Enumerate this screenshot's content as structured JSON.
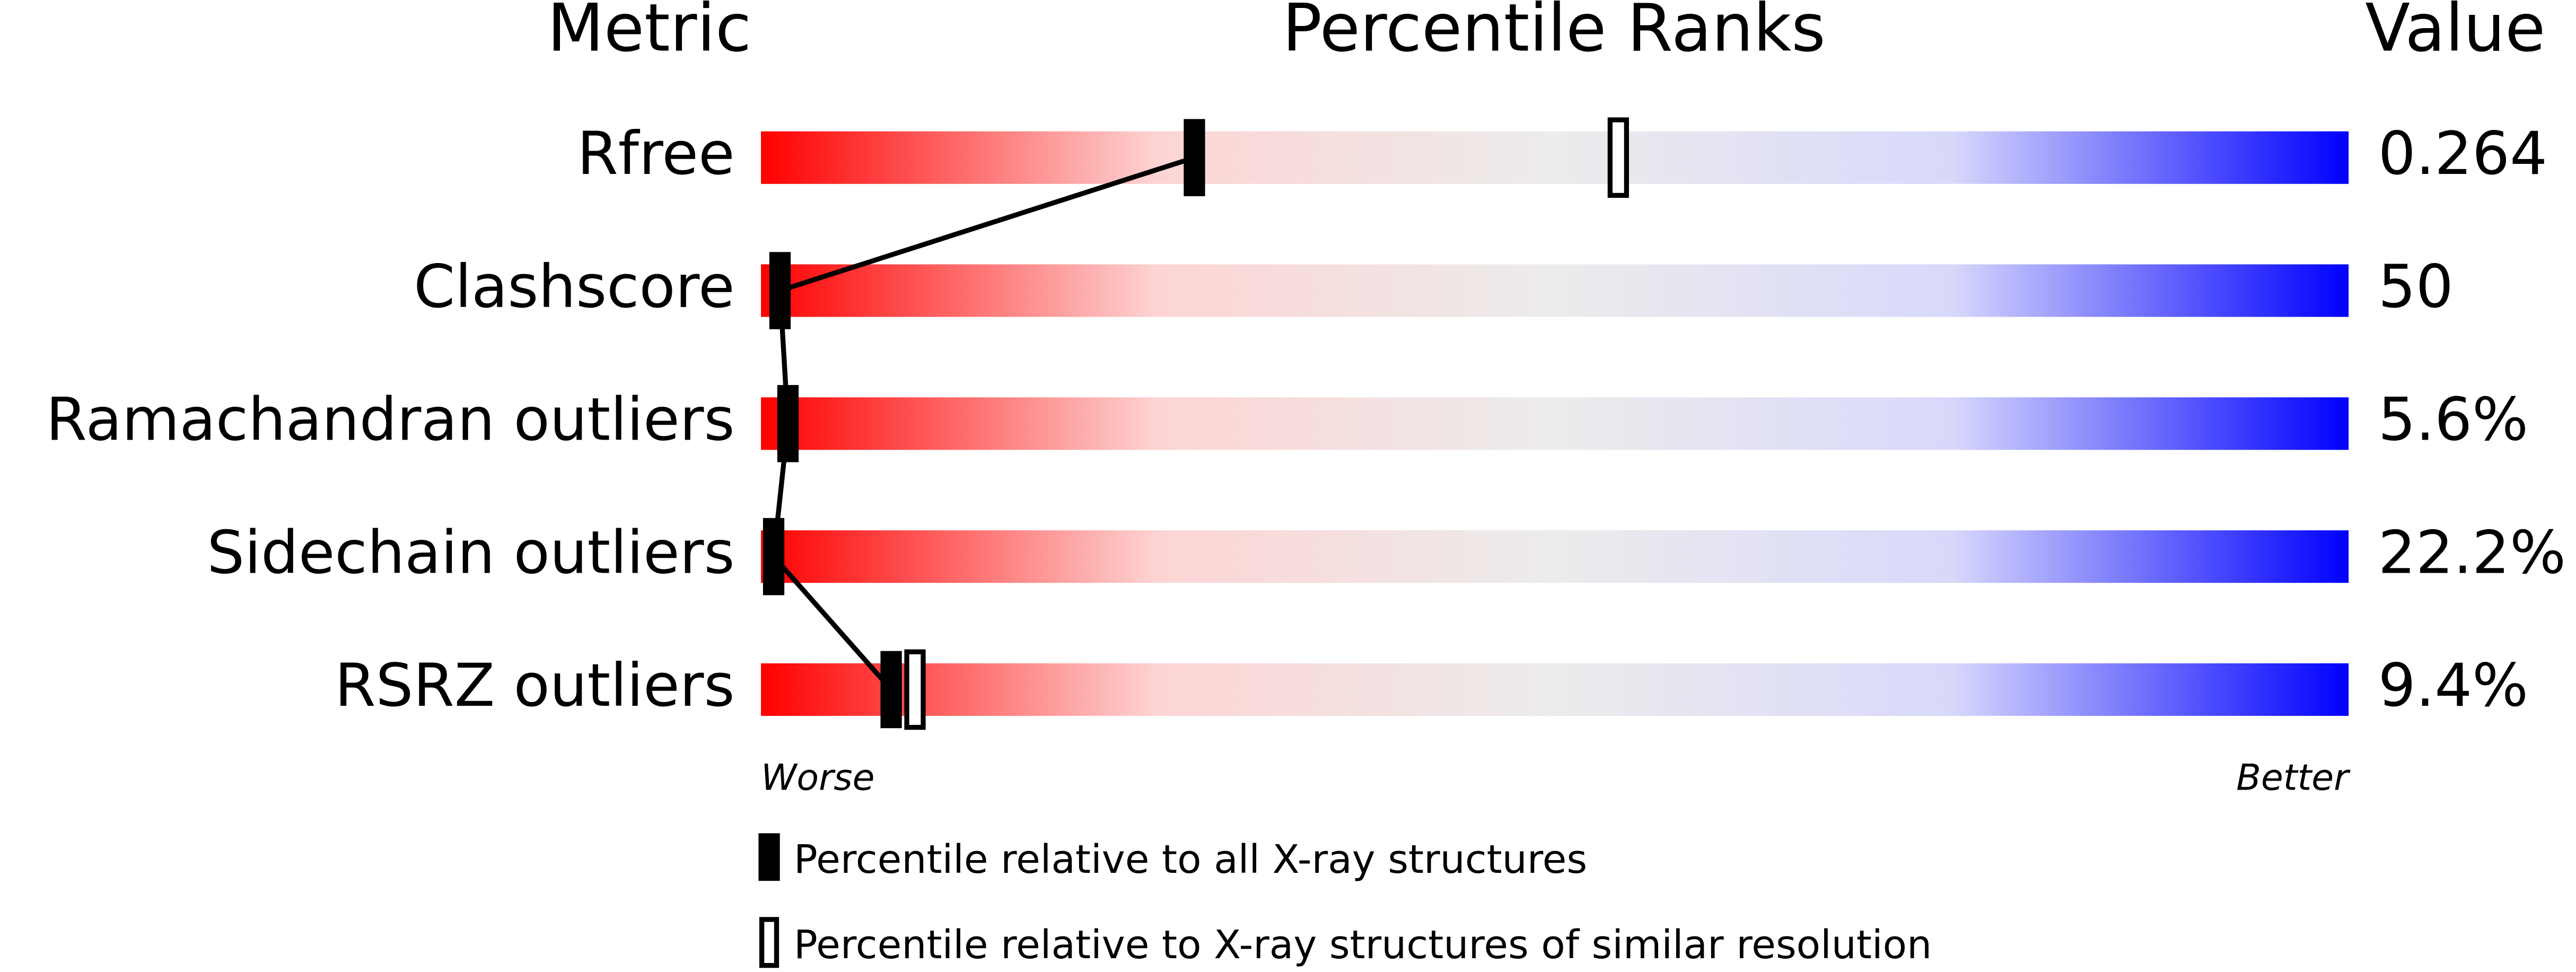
{
  "chart_data": {
    "type": "percentile",
    "headers": [
      "Metric",
      "Percentile Ranks",
      "Value"
    ],
    "categories": [
      "Rfree",
      "Clashscore",
      "Ramachandran outliers",
      "Sidechain outliers",
      "RSRZ outliers"
    ],
    "metric_values": [
      "0.264",
      "50",
      "5.6%",
      "22.2%",
      "9.4%"
    ],
    "series": [
      {
        "name": "Percentile relative to all X-ray structures",
        "color": "#000000",
        "values": [
          27.3,
          1.2,
          1.7,
          0.8,
          8.2
        ]
      },
      {
        "name": "Percentile relative to X-ray structures of similar resolution",
        "color": "#ffffff",
        "values": [
          54,
          null,
          null,
          null,
          9.7
        ]
      }
    ],
    "xlim": [
      0,
      100
    ],
    "axis_labels": [
      "Worse",
      "Better"
    ],
    "gradient": [
      "#ff0000",
      "#fdd4d4",
      "#ececec",
      "#d8d8fb",
      "#0000ff"
    ]
  }
}
